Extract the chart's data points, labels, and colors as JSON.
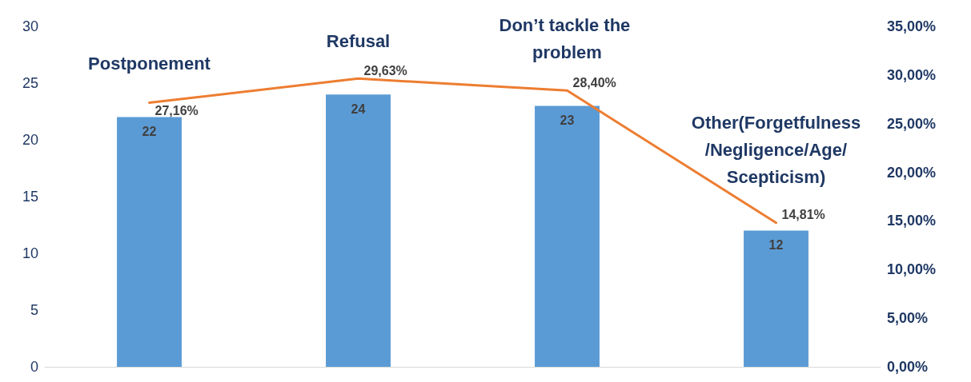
{
  "chart_data": {
    "type": "bar",
    "categories": [
      "Postponement",
      "Refusal",
      "Don’t tackle the problem",
      "Other(Forgetfulness/Negligence/Age/Scepticism)"
    ],
    "series": [
      {
        "type": "bar",
        "color": "#5b9bd5",
        "values": [
          22,
          24,
          23,
          12
        ],
        "value_labels": [
          "22",
          "24",
          "23",
          "12"
        ]
      },
      {
        "type": "line",
        "axis": "y2",
        "color": "#ed7d31",
        "values": [
          27.16,
          29.63,
          28.4,
          14.81
        ],
        "value_labels": [
          "27,16%",
          "29,63%",
          "28,40%",
          "14,81%"
        ]
      }
    ],
    "ylim": [
      0,
      30
    ],
    "yticks": [
      0,
      5,
      10,
      15,
      20,
      25,
      30
    ],
    "y2lim": [
      0,
      35
    ],
    "y2ticks": [
      {
        "value": 0,
        "label": "0,00%"
      },
      {
        "value": 5,
        "label": "5,00%"
      },
      {
        "value": 10,
        "label": "10,00%"
      },
      {
        "value": 15,
        "label": "15,00%"
      },
      {
        "value": 20,
        "label": "20,00%"
      },
      {
        "value": 25,
        "label": "25,00%"
      },
      {
        "value": 30,
        "label": "30,00%"
      },
      {
        "value": 35,
        "label": "35,00%"
      }
    ],
    "grid": false,
    "marker": "none",
    "line_style": "solid"
  }
}
